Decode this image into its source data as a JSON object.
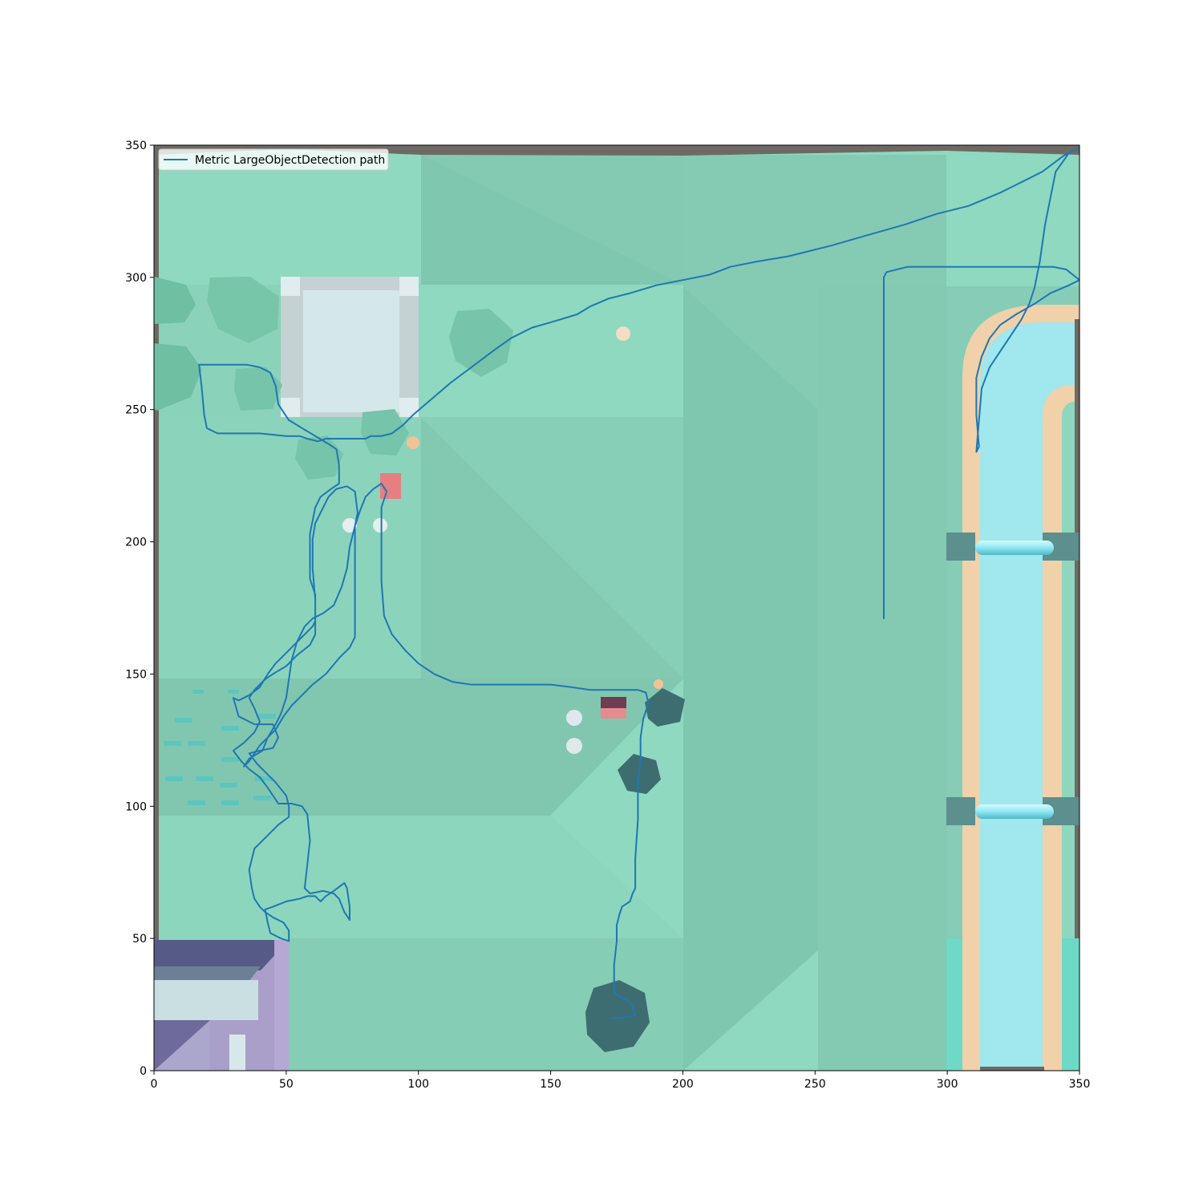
{
  "chart_data": {
    "type": "line",
    "title": "",
    "xlabel": "",
    "ylabel": "",
    "xlim": [
      0,
      350
    ],
    "ylim": [
      0,
      350
    ],
    "xticks": [
      "0",
      "50",
      "100",
      "150",
      "200",
      "250",
      "300",
      "350"
    ],
    "yticks": [
      "0",
      "50",
      "100",
      "150",
      "200",
      "250",
      "300",
      "350"
    ],
    "grid": false,
    "legend_position": "upper-left",
    "series": [
      {
        "name": "Metric LargeObjectDetection path",
        "color": "#1f77b4",
        "points": [
          [
            276,
            171
          ],
          [
            276,
            200
          ],
          [
            276,
            250
          ],
          [
            276,
            300
          ],
          [
            277,
            302
          ],
          [
            285,
            304
          ],
          [
            300,
            304
          ],
          [
            320,
            304
          ],
          [
            340,
            304
          ],
          [
            345,
            303
          ],
          [
            350,
            299
          ],
          [
            346,
            297
          ],
          [
            339,
            294
          ],
          [
            333,
            290
          ],
          [
            326,
            286
          ],
          [
            320,
            282
          ],
          [
            316,
            277
          ],
          [
            313,
            270
          ],
          [
            311,
            262
          ],
          [
            311,
            248
          ],
          [
            312,
            236
          ],
          [
            311,
            234
          ],
          [
            312,
            246
          ],
          [
            313,
            258
          ],
          [
            316,
            266
          ],
          [
            320,
            272
          ],
          [
            324,
            278
          ],
          [
            328,
            284
          ],
          [
            331,
            290
          ],
          [
            333,
            296
          ],
          [
            335,
            306
          ],
          [
            337,
            320
          ],
          [
            339,
            330
          ],
          [
            341,
            340
          ],
          [
            346,
            347
          ],
          [
            350,
            349
          ],
          [
            344,
            346
          ],
          [
            336,
            340
          ],
          [
            328,
            336
          ],
          [
            320,
            332
          ],
          [
            308,
            327
          ],
          [
            296,
            324
          ],
          [
            284,
            320
          ],
          [
            270,
            316
          ],
          [
            256,
            312
          ],
          [
            240,
            308
          ],
          [
            228,
            306
          ],
          [
            218,
            304
          ],
          [
            210,
            301
          ],
          [
            200,
            299
          ],
          [
            190,
            297
          ],
          [
            180,
            294
          ],
          [
            172,
            292
          ],
          [
            165,
            289
          ],
          [
            160,
            286
          ],
          [
            150,
            283
          ],
          [
            143,
            281
          ],
          [
            135,
            277
          ],
          [
            128,
            272
          ],
          [
            120,
            266
          ],
          [
            112,
            260
          ],
          [
            105,
            254
          ],
          [
            98,
            248
          ],
          [
            94,
            244
          ],
          [
            90,
            241
          ],
          [
            86,
            240
          ],
          [
            82,
            240
          ],
          [
            80,
            239
          ],
          [
            75,
            239
          ],
          [
            65,
            239
          ],
          [
            62,
            238
          ],
          [
            58,
            239
          ],
          [
            55,
            240
          ],
          [
            50,
            240
          ],
          [
            40,
            241
          ],
          [
            30,
            241
          ],
          [
            24,
            241
          ],
          [
            20,
            243
          ],
          [
            19,
            248
          ],
          [
            18,
            259
          ],
          [
            17,
            267
          ],
          [
            22,
            267
          ],
          [
            35,
            267
          ],
          [
            40,
            266
          ],
          [
            44,
            264
          ],
          [
            46,
            259
          ],
          [
            47,
            252
          ],
          [
            51,
            246
          ],
          [
            56,
            243
          ],
          [
            61,
            240
          ],
          [
            66,
            237
          ],
          [
            69,
            235
          ],
          [
            70,
            229
          ],
          [
            70,
            222
          ],
          [
            67,
            220
          ],
          [
            63,
            217
          ],
          [
            61,
            213
          ],
          [
            60,
            208
          ],
          [
            59,
            203
          ],
          [
            59,
            198
          ],
          [
            59,
            186
          ],
          [
            61,
            180
          ],
          [
            61,
            170
          ],
          [
            60,
            168
          ],
          [
            55,
            163
          ],
          [
            50,
            158
          ],
          [
            46,
            154
          ],
          [
            43,
            150
          ],
          [
            40,
            145
          ],
          [
            36,
            142
          ],
          [
            32,
            140
          ],
          [
            30,
            141
          ],
          [
            32,
            134
          ],
          [
            38,
            131
          ],
          [
            45,
            131
          ],
          [
            47,
            126
          ],
          [
            45,
            122
          ],
          [
            40,
            121
          ],
          [
            36,
            120
          ],
          [
            39,
            116
          ],
          [
            42,
            113
          ],
          [
            46,
            109
          ],
          [
            50,
            104
          ],
          [
            51,
            100
          ],
          [
            51,
            96
          ],
          [
            47,
            93
          ],
          [
            42,
            88
          ],
          [
            38,
            84
          ],
          [
            37,
            80
          ],
          [
            36,
            76
          ],
          [
            37,
            69
          ],
          [
            38,
            65
          ],
          [
            40,
            62
          ],
          [
            42,
            60
          ],
          [
            45,
            58
          ],
          [
            49,
            56
          ],
          [
            51,
            53
          ],
          [
            51,
            49
          ],
          [
            48,
            50
          ],
          [
            44,
            52
          ],
          [
            43,
            56
          ],
          [
            42,
            61
          ],
          [
            45,
            62
          ],
          [
            50,
            64
          ],
          [
            55,
            65
          ],
          [
            58,
            66
          ],
          [
            61,
            66
          ],
          [
            63,
            64
          ],
          [
            65,
            66
          ],
          [
            68,
            68
          ],
          [
            72,
            71
          ],
          [
            73,
            69
          ],
          [
            74,
            62
          ],
          [
            74,
            57
          ],
          [
            72,
            60
          ],
          [
            70,
            65
          ],
          [
            68,
            67
          ],
          [
            64,
            68
          ],
          [
            59,
            67
          ],
          [
            57,
            69
          ],
          [
            58,
            78
          ],
          [
            59,
            87
          ],
          [
            58,
            97
          ],
          [
            56,
            100
          ],
          [
            52,
            101
          ],
          [
            47,
            101
          ],
          [
            45,
            104
          ],
          [
            43,
            107
          ],
          [
            40,
            111
          ],
          [
            36,
            114
          ],
          [
            33,
            117
          ],
          [
            30,
            121
          ],
          [
            34,
            124
          ],
          [
            38,
            128
          ],
          [
            40,
            132
          ],
          [
            38,
            137
          ],
          [
            36,
            141
          ],
          [
            38,
            144
          ],
          [
            42,
            148
          ],
          [
            45,
            150
          ],
          [
            50,
            153
          ],
          [
            54,
            157
          ],
          [
            59,
            161
          ],
          [
            61,
            165
          ],
          [
            61,
            178
          ],
          [
            60,
            190
          ],
          [
            60,
            201
          ],
          [
            61,
            207
          ],
          [
            64,
            213
          ],
          [
            66,
            217
          ],
          [
            69,
            220
          ],
          [
            73,
            221
          ],
          [
            76,
            219
          ],
          [
            77,
            211
          ],
          [
            76,
            206
          ],
          [
            76,
            196
          ],
          [
            76,
            186
          ],
          [
            76,
            176
          ],
          [
            76,
            164
          ],
          [
            74,
            160
          ],
          [
            70,
            156
          ],
          [
            65,
            150
          ],
          [
            60,
            146
          ],
          [
            56,
            142
          ],
          [
            52,
            138
          ],
          [
            49,
            134
          ],
          [
            46,
            129
          ],
          [
            43,
            126
          ],
          [
            40,
            123
          ],
          [
            38,
            120
          ],
          [
            36,
            117
          ],
          [
            34,
            115
          ],
          [
            36,
            118
          ],
          [
            41,
            121
          ],
          [
            43,
            126
          ],
          [
            46,
            131
          ],
          [
            48,
            135
          ],
          [
            50,
            141
          ],
          [
            51,
            148
          ],
          [
            52,
            155
          ],
          [
            54,
            162
          ],
          [
            57,
            168
          ],
          [
            60,
            171
          ],
          [
            64,
            173
          ],
          [
            68,
            176
          ],
          [
            71,
            183
          ],
          [
            73,
            190
          ],
          [
            74,
            198
          ],
          [
            76,
            206
          ],
          [
            78,
            212
          ],
          [
            80,
            217
          ],
          [
            83,
            220
          ],
          [
            86,
            222
          ],
          [
            88,
            219
          ],
          [
            86,
            213
          ],
          [
            86,
            205
          ],
          [
            86,
            195
          ],
          [
            86,
            185
          ],
          [
            87,
            172
          ],
          [
            90,
            165
          ],
          [
            95,
            159
          ],
          [
            100,
            154
          ],
          [
            106,
            150
          ],
          [
            113,
            147
          ],
          [
            120,
            146
          ],
          [
            130,
            146
          ],
          [
            140,
            146
          ],
          [
            150,
            146
          ],
          [
            158,
            145
          ],
          [
            165,
            144
          ],
          [
            172,
            144
          ],
          [
            178,
            144
          ],
          [
            183,
            144
          ],
          [
            186,
            143
          ],
          [
            187,
            139
          ],
          [
            185,
            133
          ],
          [
            184,
            126
          ],
          [
            184,
            118
          ],
          [
            183,
            108
          ],
          [
            183,
            95
          ],
          [
            182,
            80
          ],
          [
            182,
            69
          ],
          [
            181,
            67
          ],
          [
            180,
            64
          ],
          [
            177,
            62
          ],
          [
            176,
            59
          ],
          [
            175,
            55
          ],
          [
            175,
            49
          ],
          [
            174,
            40
          ],
          [
            174,
            30
          ],
          [
            176,
            28
          ],
          [
            180,
            26
          ],
          [
            181,
            24
          ],
          [
            182,
            21
          ],
          [
            177,
            20
          ],
          [
            173,
            20
          ]
        ]
      }
    ]
  }
}
